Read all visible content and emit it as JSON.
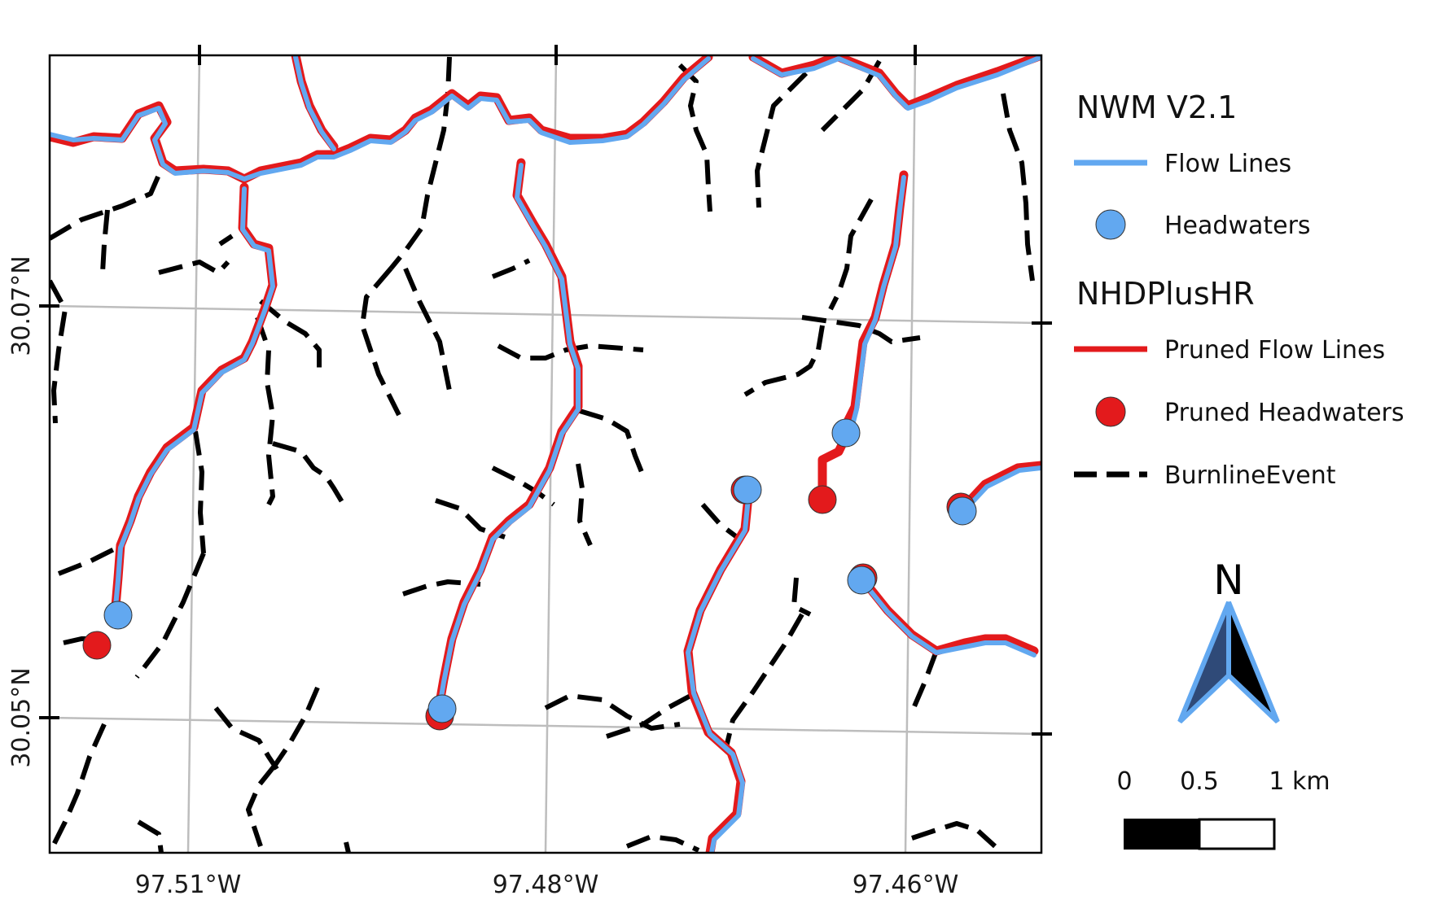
{
  "map": {
    "longitude_labels": [
      "97.51°W",
      "97.48°W",
      "97.46°W"
    ],
    "latitude_labels": [
      "30.07°N",
      "30.05°N"
    ]
  },
  "legend": {
    "group1_title": "NWM V2.1",
    "flow_lines_label": "Flow Lines",
    "headwaters_label": "Headwaters",
    "group2_title": "NHDPlusHR",
    "pruned_flow_lines_label": "Pruned Flow Lines",
    "pruned_headwaters_label": "Pruned Headwaters",
    "burnline_label": "BurnlineEvent"
  },
  "north_arrow": {
    "letter": "N"
  },
  "scale_bar": {
    "labels": [
      "0",
      "0.5",
      "1 km"
    ]
  },
  "colors": {
    "nwm_flow": "#62a8f0",
    "nhd_pruned": "#e31a1c",
    "burnline": "#000000",
    "grid": "#bdbdbd"
  }
}
